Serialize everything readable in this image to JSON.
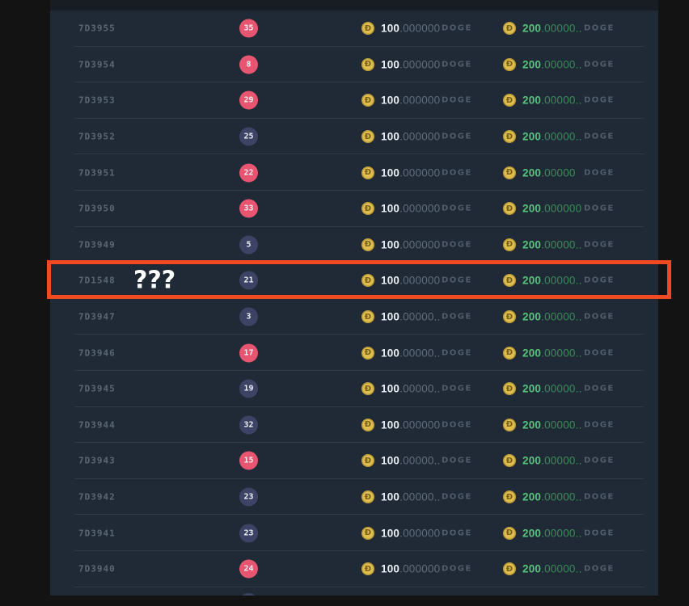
{
  "highlight": {
    "overlay_text": "???",
    "border_color": "#F14A23"
  },
  "currency": {
    "coin_symbol": "Ð",
    "unit": "DOGE"
  },
  "colors": {
    "panel_bg": "#202A36",
    "separator": "#2F3A47",
    "badge_red": "#E75570",
    "badge_navy": "#3C4364",
    "coin_gold": "#DFBE4E",
    "green_bright": "#57C27B",
    "green_dim": "#3B8A58"
  },
  "rows": [
    {
      "id": "7D3955",
      "badge": "35",
      "badge_color": "red",
      "amount1_int": "100",
      "amount1_dec": ".000000",
      "amount2_int": "200",
      "amount2_dec": ".00000..",
      "highlighted": false
    },
    {
      "id": "7D3954",
      "badge": "8",
      "badge_color": "red",
      "amount1_int": "100",
      "amount1_dec": ".000000",
      "amount2_int": "200",
      "amount2_dec": ".00000..",
      "highlighted": false
    },
    {
      "id": "7D3953",
      "badge": "29",
      "badge_color": "red",
      "amount1_int": "100",
      "amount1_dec": ".000000",
      "amount2_int": "200",
      "amount2_dec": ".00000..",
      "highlighted": false
    },
    {
      "id": "7D3952",
      "badge": "25",
      "badge_color": "navy",
      "amount1_int": "100",
      "amount1_dec": ".000000",
      "amount2_int": "200",
      "amount2_dec": ".00000..",
      "highlighted": false
    },
    {
      "id": "7D3951",
      "badge": "22",
      "badge_color": "red",
      "amount1_int": "100",
      "amount1_dec": ".000000",
      "amount2_int": "200",
      "amount2_dec": ".00000",
      "highlighted": false
    },
    {
      "id": "7D3950",
      "badge": "33",
      "badge_color": "red",
      "amount1_int": "100",
      "amount1_dec": ".000000",
      "amount2_int": "200",
      "amount2_dec": ".000000",
      "highlighted": false
    },
    {
      "id": "7D3949",
      "badge": "5",
      "badge_color": "navy",
      "amount1_int": "100",
      "amount1_dec": ".000000",
      "amount2_int": "200",
      "amount2_dec": ".00000..",
      "highlighted": false
    },
    {
      "id": "7D1548",
      "badge": "21",
      "badge_color": "navy",
      "amount1_int": "100",
      "amount1_dec": ".000000",
      "amount2_int": "200",
      "amount2_dec": ".00000..",
      "highlighted": true
    },
    {
      "id": "7D3947",
      "badge": "3",
      "badge_color": "navy",
      "amount1_int": "100",
      "amount1_dec": ".00000..",
      "amount2_int": "200",
      "amount2_dec": ".00000..",
      "highlighted": false
    },
    {
      "id": "7D3946",
      "badge": "17",
      "badge_color": "red",
      "amount1_int": "100",
      "amount1_dec": ".00000..",
      "amount2_int": "200",
      "amount2_dec": ".00000..",
      "highlighted": false
    },
    {
      "id": "7D3945",
      "badge": "19",
      "badge_color": "navy",
      "amount1_int": "100",
      "amount1_dec": ".00000..",
      "amount2_int": "200",
      "amount2_dec": ".00000..",
      "highlighted": false
    },
    {
      "id": "7D3944",
      "badge": "32",
      "badge_color": "navy",
      "amount1_int": "100",
      "amount1_dec": ".000000",
      "amount2_int": "200",
      "amount2_dec": ".00000..",
      "highlighted": false
    },
    {
      "id": "7D3943",
      "badge": "15",
      "badge_color": "red",
      "amount1_int": "100",
      "amount1_dec": ".00000..",
      "amount2_int": "200",
      "amount2_dec": ".00000..",
      "highlighted": false
    },
    {
      "id": "7D3942",
      "badge": "23",
      "badge_color": "navy",
      "amount1_int": "100",
      "amount1_dec": ".00000..",
      "amount2_int": "200",
      "amount2_dec": ".00000..",
      "highlighted": false
    },
    {
      "id": "7D3941",
      "badge": "23",
      "badge_color": "navy",
      "amount1_int": "100",
      "amount1_dec": ".000000",
      "amount2_int": "200",
      "amount2_dec": ".00000..",
      "highlighted": false
    },
    {
      "id": "7D3940",
      "badge": "24",
      "badge_color": "red",
      "amount1_int": "100",
      "amount1_dec": ".000000",
      "amount2_int": "200",
      "amount2_dec": ".00000..",
      "highlighted": false
    }
  ],
  "partial_next_row": true
}
